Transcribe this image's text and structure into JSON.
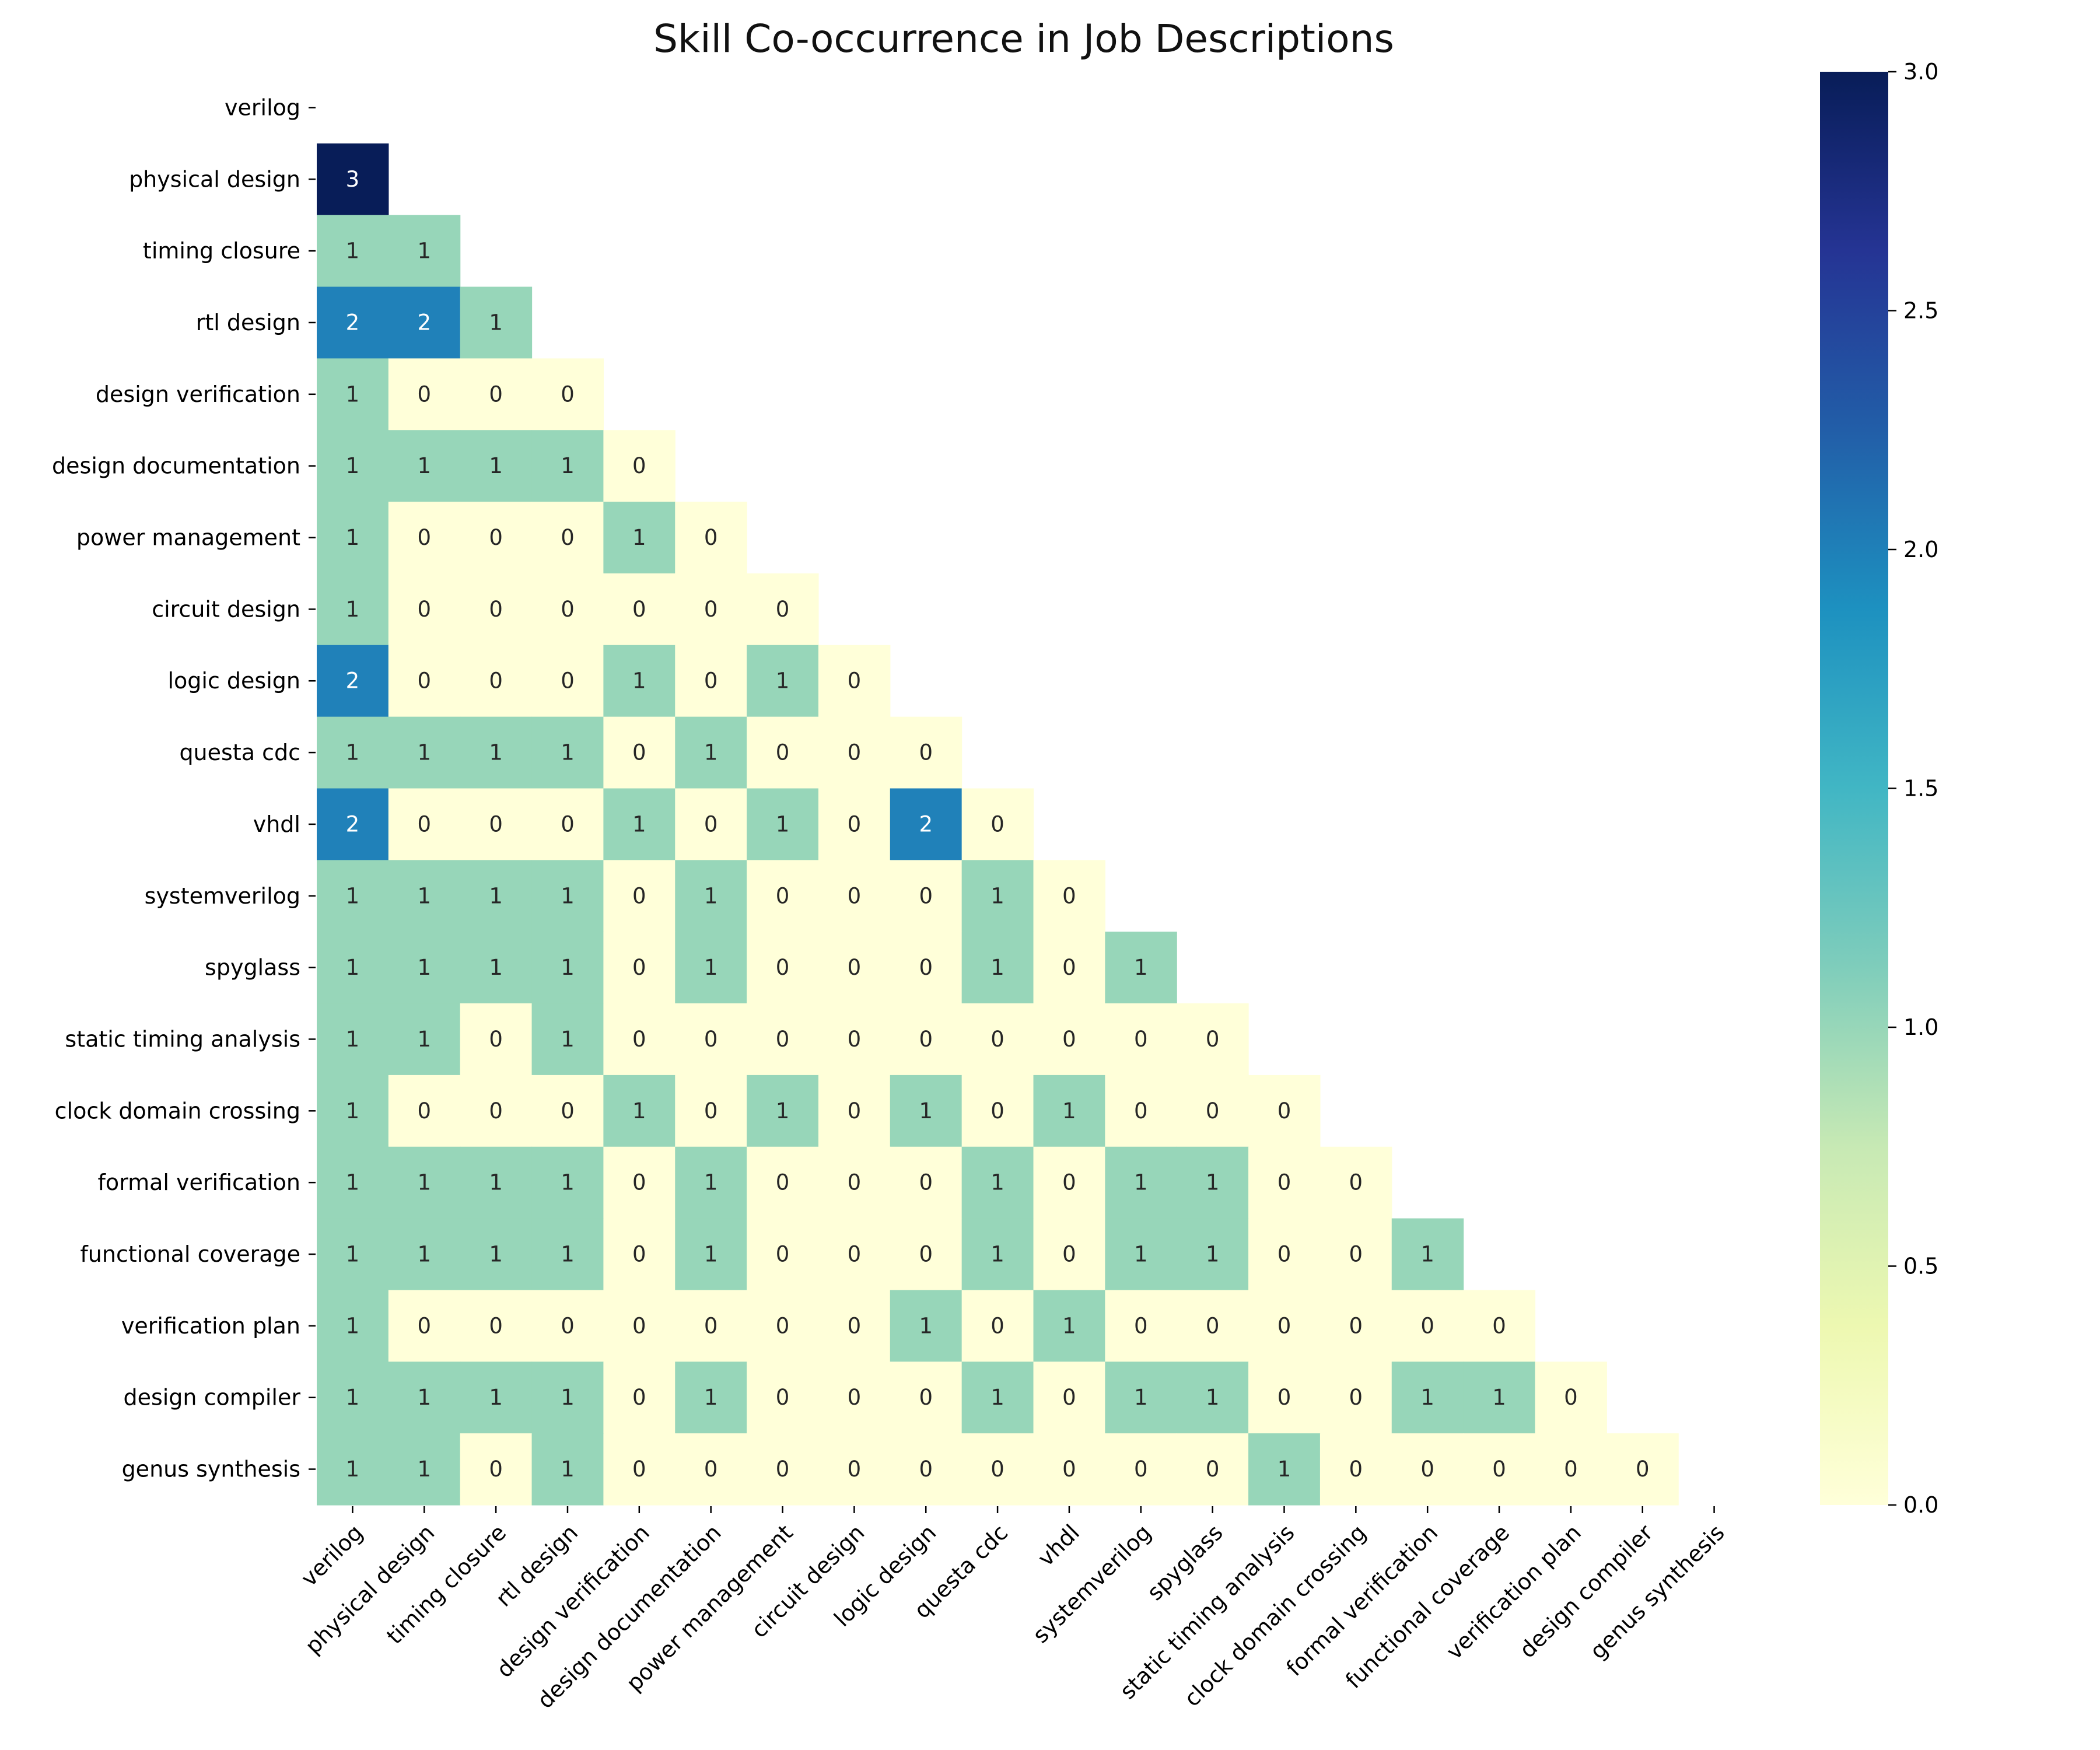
{
  "chart_data": {
    "type": "heatmap",
    "title": "Skill Co-occurrence in Job Descriptions",
    "mask": "upper triangle including diagonal",
    "colormap": "YlGnBu",
    "labels": [
      "verilog",
      "physical design",
      "timing closure",
      "rtl design",
      "design verification",
      "design documentation",
      "power management",
      "circuit design",
      "logic design",
      "questa cdc",
      "vhdl",
      "systemverilog",
      "spyglass",
      "static timing analysis",
      "clock domain crossing",
      "formal verification",
      "functional coverage",
      "verification plan",
      "design compiler",
      "genus synthesis"
    ],
    "rows": [
      [],
      [
        3
      ],
      [
        1,
        1
      ],
      [
        2,
        2,
        1
      ],
      [
        1,
        0,
        0,
        0
      ],
      [
        1,
        1,
        1,
        1,
        0
      ],
      [
        1,
        0,
        0,
        0,
        1,
        0
      ],
      [
        1,
        0,
        0,
        0,
        0,
        0,
        0
      ],
      [
        2,
        0,
        0,
        0,
        1,
        0,
        1,
        0
      ],
      [
        1,
        1,
        1,
        1,
        0,
        1,
        0,
        0,
        0
      ],
      [
        2,
        0,
        0,
        0,
        1,
        0,
        1,
        0,
        2,
        0
      ],
      [
        1,
        1,
        1,
        1,
        0,
        1,
        0,
        0,
        0,
        1,
        0
      ],
      [
        1,
        1,
        1,
        1,
        0,
        1,
        0,
        0,
        0,
        1,
        0,
        1
      ],
      [
        1,
        1,
        0,
        1,
        0,
        0,
        0,
        0,
        0,
        0,
        0,
        0,
        0
      ],
      [
        1,
        0,
        0,
        0,
        1,
        0,
        1,
        0,
        1,
        0,
        1,
        0,
        0,
        0
      ],
      [
        1,
        1,
        1,
        1,
        0,
        1,
        0,
        0,
        0,
        1,
        0,
        1,
        1,
        0,
        0
      ],
      [
        1,
        1,
        1,
        1,
        0,
        1,
        0,
        0,
        0,
        1,
        0,
        1,
        1,
        0,
        0,
        1
      ],
      [
        1,
        0,
        0,
        0,
        0,
        0,
        0,
        0,
        1,
        0,
        1,
        0,
        0,
        0,
        0,
        0,
        0
      ],
      [
        1,
        1,
        1,
        1,
        0,
        1,
        0,
        0,
        0,
        1,
        0,
        1,
        1,
        0,
        0,
        1,
        1,
        0
      ],
      [
        1,
        1,
        0,
        1,
        0,
        0,
        0,
        0,
        0,
        0,
        0,
        0,
        0,
        1,
        0,
        0,
        0,
        0,
        0
      ]
    ],
    "colorbar": {
      "range": [
        0.0,
        3.0
      ],
      "ticks": [
        "0.0",
        "0.5",
        "1.0",
        "1.5",
        "2.0",
        "2.5",
        "3.0"
      ]
    },
    "colors": {
      "0": "#ffffd9",
      "1": "#97d6b9",
      "2": "#2081b9",
      "3": "#081d58",
      "text_light": "#ffffff",
      "text_dark": "#262626"
    }
  }
}
